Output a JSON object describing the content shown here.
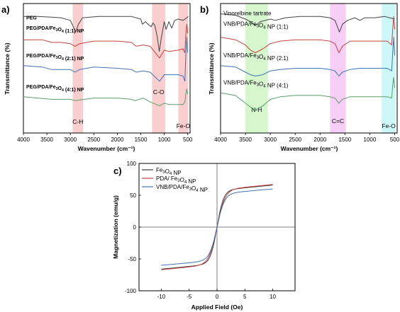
{
  "chart_data": [
    {
      "panel": "a)",
      "type": "line",
      "xlabel": "Wavenumber (cm⁻¹)",
      "ylabel": "Transmittance (%)",
      "xlim": [
        4000,
        450
      ],
      "x_reversed": true,
      "xticks": [
        4000,
        3500,
        3000,
        2500,
        2000,
        1500,
        1000,
        500
      ],
      "y_tick_labels": false,
      "series": [
        {
          "name": "PEG",
          "color": "#444444",
          "offset": 90,
          "points": [
            [
              4000,
              0
            ],
            [
              3700,
              0
            ],
            [
              3400,
              -0.5
            ],
            [
              3200,
              -1
            ],
            [
              3000,
              -3
            ],
            [
              2950,
              -7
            ],
            [
              2885,
              -12
            ],
            [
              2830,
              -6
            ],
            [
              2740,
              -1
            ],
            [
              2400,
              0
            ],
            [
              1970,
              0
            ],
            [
              1700,
              0
            ],
            [
              1500,
              -2
            ],
            [
              1467,
              -6
            ],
            [
              1400,
              -4
            ],
            [
              1345,
              -6
            ],
            [
              1280,
              -8
            ],
            [
              1240,
              -5
            ],
            [
              1200,
              -7
            ],
            [
              1148,
              -16
            ],
            [
              1105,
              -27
            ],
            [
              1060,
              -16
            ],
            [
              1000,
              -4
            ],
            [
              960,
              -10
            ],
            [
              900,
              -4
            ],
            [
              842,
              -9
            ],
            [
              780,
              -3
            ],
            [
              700,
              -2
            ],
            [
              600,
              -3
            ],
            [
              520,
              -1
            ],
            [
              490,
              0
            ]
          ]
        },
        {
          "name": "PEG/PDA/Fe₃O₄ (1:1) NP",
          "color": "#c8423c",
          "offset": 72,
          "points": [
            [
              4000,
              0
            ],
            [
              3600,
              0
            ],
            [
              3400,
              -2
            ],
            [
              3200,
              -2
            ],
            [
              3000,
              -3
            ],
            [
              2900,
              -5
            ],
            [
              2800,
              -3
            ],
            [
              2500,
              -1
            ],
            [
              2000,
              -1
            ],
            [
              1700,
              -2
            ],
            [
              1600,
              -5
            ],
            [
              1450,
              -4
            ],
            [
              1300,
              -5
            ],
            [
              1100,
              -14
            ],
            [
              1000,
              -8
            ],
            [
              900,
              -9
            ],
            [
              700,
              -8
            ],
            [
              600,
              -7
            ],
            [
              560,
              -10
            ],
            [
              540,
              4
            ],
            [
              520,
              12
            ],
            [
              500,
              5
            ]
          ]
        },
        {
          "name": "PEG/PDA/Fe₃O₄ (2:1) NP",
          "color": "#3f72b5",
          "offset": 52,
          "points": [
            [
              4000,
              0
            ],
            [
              3600,
              -1
            ],
            [
              3400,
              -3
            ],
            [
              3200,
              -3
            ],
            [
              3000,
              -3
            ],
            [
              2900,
              -5
            ],
            [
              2800,
              -3
            ],
            [
              2500,
              -1
            ],
            [
              2000,
              -2
            ],
            [
              1700,
              -3
            ],
            [
              1600,
              -5
            ],
            [
              1450,
              -4
            ],
            [
              1300,
              -5
            ],
            [
              1100,
              -12
            ],
            [
              1000,
              -7
            ],
            [
              900,
              -7
            ],
            [
              700,
              -7
            ],
            [
              600,
              -8
            ],
            [
              560,
              -12
            ],
            [
              540,
              8
            ],
            [
              520,
              22
            ],
            [
              500,
              10
            ]
          ]
        },
        {
          "name": "PEG/PDA/Fe₃O₄ (4:1) NP",
          "color": "#5a9e6a",
          "offset": 28,
          "points": [
            [
              4000,
              0
            ],
            [
              3700,
              -1
            ],
            [
              3400,
              -2
            ],
            [
              3200,
              -2
            ],
            [
              3000,
              -2
            ],
            [
              2900,
              -3
            ],
            [
              2500,
              -1
            ],
            [
              2000,
              -1
            ],
            [
              1700,
              -2
            ],
            [
              1620,
              -3
            ],
            [
              1450,
              -1
            ],
            [
              1300,
              -4
            ],
            [
              1100,
              -7
            ],
            [
              1000,
              -5
            ],
            [
              900,
              -6
            ],
            [
              700,
              -6
            ],
            [
              600,
              -6
            ],
            [
              560,
              -4
            ],
            [
              540,
              2
            ],
            [
              520,
              6
            ],
            [
              500,
              2
            ]
          ]
        }
      ],
      "bands": [
        {
          "label": "C-H",
          "from": 2950,
          "to": 2730,
          "color": "#f4a6a6"
        },
        {
          "label": "C-O",
          "from": 1260,
          "to": 980,
          "color": "#f4a6a6"
        },
        {
          "label": "Fe-O",
          "from": 700,
          "to": 490,
          "color": "#f4a6a6"
        }
      ]
    },
    {
      "panel": "b)",
      "type": "line",
      "xlabel": "Wavenumber (cm⁻¹)",
      "ylabel": "Transmittance (%)",
      "xlim": [
        4000,
        450
      ],
      "x_reversed": true,
      "xticks": [
        4000,
        3500,
        3000,
        2500,
        2000,
        1500,
        1000,
        500
      ],
      "y_tick_labels": false,
      "series": [
        {
          "name": "Vinorelbine tartrate",
          "color": "#444444",
          "offset": 92,
          "points": [
            [
              4000,
              0
            ],
            [
              3700,
              -1
            ],
            [
              3500,
              -4
            ],
            [
              3400,
              -6
            ],
            [
              3300,
              -9
            ],
            [
              3200,
              -6
            ],
            [
              3000,
              -4
            ],
            [
              2900,
              -5
            ],
            [
              2700,
              -3
            ],
            [
              2400,
              -2
            ],
            [
              2000,
              -2
            ],
            [
              1800,
              -3
            ],
            [
              1700,
              -5
            ],
            [
              1610,
              -14
            ],
            [
              1550,
              -8
            ],
            [
              1450,
              -5
            ],
            [
              1300,
              -3
            ],
            [
              1200,
              -5
            ],
            [
              1100,
              -3
            ],
            [
              900,
              -3
            ],
            [
              700,
              -2
            ],
            [
              600,
              -3
            ],
            [
              500,
              -4
            ]
          ]
        },
        {
          "name": "VNB/PDA/Fe₃O₄ NP (1:1)",
          "color": "#c8423c",
          "offset": 74,
          "points": [
            [
              4000,
              0
            ],
            [
              3700,
              -2
            ],
            [
              3500,
              -6
            ],
            [
              3400,
              -10
            ],
            [
              3300,
              -12
            ],
            [
              3150,
              -9
            ],
            [
              3000,
              -5
            ],
            [
              2800,
              -3
            ],
            [
              2500,
              -2
            ],
            [
              2000,
              -2
            ],
            [
              1800,
              -3
            ],
            [
              1700,
              -5
            ],
            [
              1620,
              -12
            ],
            [
              1550,
              -7
            ],
            [
              1400,
              -3
            ],
            [
              1200,
              -3
            ],
            [
              1000,
              -3
            ],
            [
              800,
              -3
            ],
            [
              650,
              -3
            ],
            [
              560,
              -6
            ],
            [
              540,
              6
            ],
            [
              520,
              16
            ],
            [
              500,
              6
            ]
          ]
        },
        {
          "name": "VNB/PDA/Fe₃O₄ NP (2:1)",
          "color": "#3f72b5",
          "offset": 52,
          "points": [
            [
              4000,
              0
            ],
            [
              3700,
              -1
            ],
            [
              3500,
              -5
            ],
            [
              3400,
              -7
            ],
            [
              3300,
              -8
            ],
            [
              3150,
              -7
            ],
            [
              3000,
              -4
            ],
            [
              2800,
              -3
            ],
            [
              2500,
              -2
            ],
            [
              2000,
              -2
            ],
            [
              1800,
              -3
            ],
            [
              1700,
              -4
            ],
            [
              1620,
              -8
            ],
            [
              1550,
              -5
            ],
            [
              1400,
              -3
            ],
            [
              1200,
              -2
            ],
            [
              1000,
              -2
            ],
            [
              800,
              -2
            ],
            [
              650,
              -2
            ],
            [
              560,
              -4
            ],
            [
              540,
              10
            ],
            [
              520,
              22
            ],
            [
              500,
              8
            ]
          ]
        },
        {
          "name": "VNB/PDA/Fe₃O₄ NP (4:1)",
          "color": "#5a9e6a",
          "offset": 31,
          "points": [
            [
              4000,
              0
            ],
            [
              3700,
              -2
            ],
            [
              3500,
              -8
            ],
            [
              3400,
              -11
            ],
            [
              3300,
              -13
            ],
            [
              3150,
              -10
            ],
            [
              3000,
              -5
            ],
            [
              2800,
              -3
            ],
            [
              2500,
              -2
            ],
            [
              2000,
              -2
            ],
            [
              1800,
              -3
            ],
            [
              1700,
              -4
            ],
            [
              1620,
              -8
            ],
            [
              1550,
              -5
            ],
            [
              1400,
              -3
            ],
            [
              1200,
              -3
            ],
            [
              1000,
              -3
            ],
            [
              800,
              -3
            ],
            [
              650,
              -3
            ],
            [
              560,
              -4
            ],
            [
              540,
              6
            ],
            [
              520,
              12
            ],
            [
              500,
              4
            ]
          ]
        }
      ],
      "bands": [
        {
          "label": "N-H",
          "from": 3500,
          "to": 3050,
          "color": "#b4f0a6"
        },
        {
          "label": "C=C",
          "from": 1800,
          "to": 1480,
          "color": "#f0a6ef"
        },
        {
          "label": "Fe-O",
          "from": 760,
          "to": 480,
          "color": "#a6f0f0"
        }
      ]
    },
    {
      "panel": "c)",
      "type": "line",
      "xlabel": "Applied Field (Oe)",
      "ylabel": "Magnetization (emu/g)",
      "xlim": [
        -14,
        14
      ],
      "ylim": [
        -100,
        100
      ],
      "xticks": [
        -10,
        -5,
        0,
        5,
        10
      ],
      "yticks": [
        -100,
        -50,
        0,
        50,
        100
      ],
      "series": [
        {
          "name": "Fe₃O₄ NP",
          "color": "#3a3a3a",
          "ms": 66,
          "k": 0.85
        },
        {
          "name": "PDA/ Fe₃O₄ NP",
          "color": "#c8423c",
          "ms": 67,
          "k": 0.7
        },
        {
          "name": "VNB/PDA/Fe₃O₄ NP",
          "color": "#3f72b5",
          "ms": 60,
          "k": 0.75
        }
      ],
      "legend": "top-left"
    }
  ]
}
